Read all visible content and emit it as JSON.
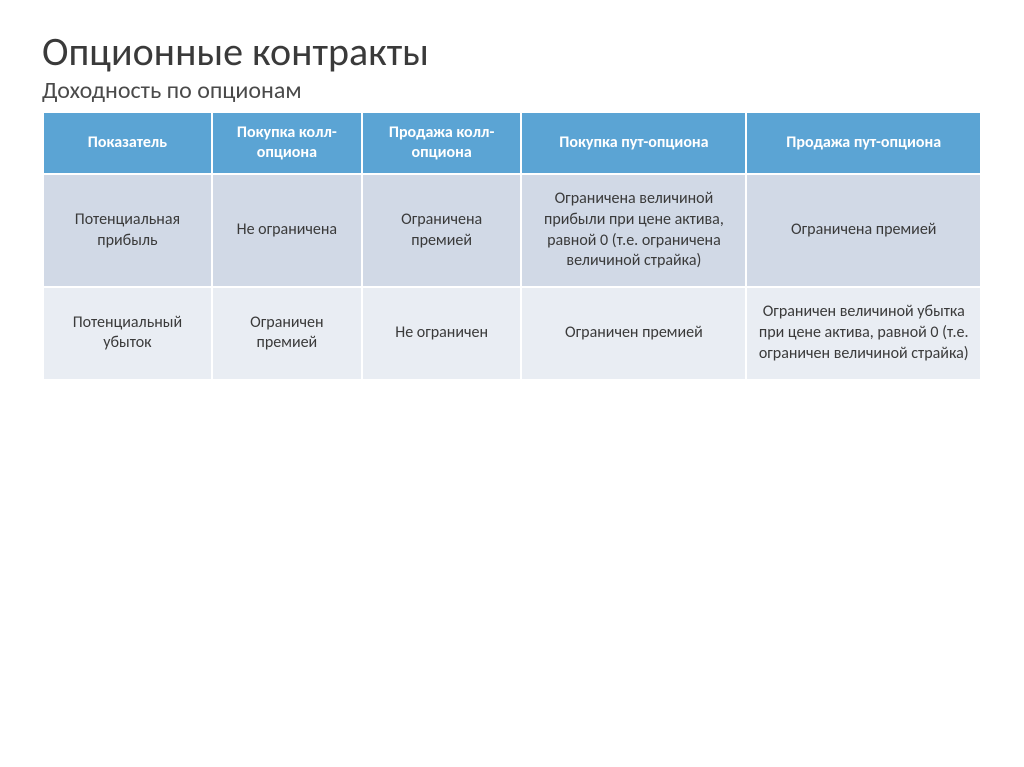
{
  "heading": {
    "title": "Опционные контракты",
    "subtitle": "Доходность по опционам"
  },
  "table": {
    "type": "table",
    "header_bg_color": "#5ba4d4",
    "header_text_color": "#ffffff",
    "row_colors": [
      "#d1d9e6",
      "#e9edf3"
    ],
    "border_color": "#ffffff",
    "title_fontsize": 40,
    "subtitle_fontsize": 24,
    "header_fontsize": 16,
    "cell_fontsize": 16,
    "columns": [
      "Показатель",
      "Покупка колл-опциона",
      "Продажа колл-опциона",
      "Покупка пут-опциона",
      "Продажа пут-опциона"
    ],
    "rows": [
      [
        "Потенциальная прибыль",
        "Не ограничена",
        "Ограничена премией",
        "Ограничена величиной прибыли при цене актива, равной 0 (т.е. ограничена величиной страйка)",
        "Ограничена премией"
      ],
      [
        "Потенциальный убыток",
        "Ограничен премией",
        "Не ограничен",
        "Ограничен премией",
        "Ограничен величиной убытка при цене актива, равной 0 (т.е. ограничен величиной страйка)"
      ]
    ]
  }
}
